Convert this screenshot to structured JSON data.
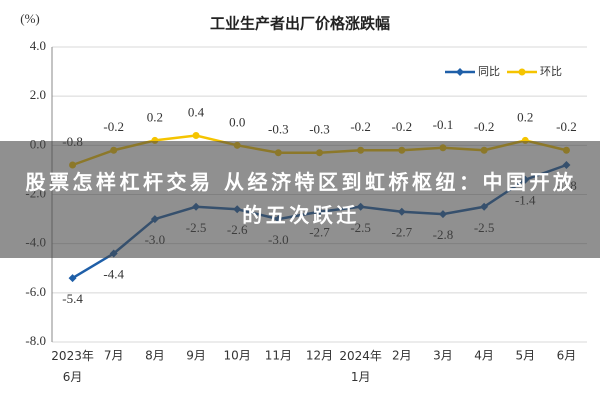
{
  "chart_data": {
    "type": "line",
    "title": "工业生产者出厂价格涨跌幅",
    "y_label": "(%)",
    "categories": [
      "2023年6月",
      "7月",
      "8月",
      "9月",
      "10月",
      "11月",
      "12月",
      "2024年1月",
      "2月",
      "3月",
      "4月",
      "5月",
      "6月"
    ],
    "series": [
      {
        "name": "同比",
        "color": "#1f5fa8",
        "marker": "diamond",
        "label_position": "below",
        "values": [
          -5.4,
          -4.4,
          -3.0,
          -2.5,
          -2.6,
          -3.0,
          -2.7,
          -2.5,
          -2.7,
          -2.8,
          -2.5,
          -1.4,
          -0.8
        ],
        "value_labels": [
          "-5.4",
          "-4.4",
          "-3.0",
          "-2.5",
          "-2.6",
          "-3.0",
          "-2.7",
          "-2.5",
          "-2.7",
          "-2.8",
          "-2.5",
          "-1.4",
          "-0.8"
        ]
      },
      {
        "name": "环比",
        "color": "#f5c400",
        "marker": "circle",
        "label_position": "above",
        "values": [
          -0.8,
          -0.2,
          0.2,
          0.4,
          0.0,
          -0.3,
          -0.3,
          -0.2,
          -0.2,
          -0.1,
          -0.2,
          0.2,
          -0.2
        ],
        "value_labels": [
          "-0.8",
          "-0.2",
          "0.2",
          "0.4",
          "0.0",
          "-0.3",
          "-0.3",
          "-0.2",
          "-0.2",
          "-0.1",
          "-0.2",
          "0.2",
          "-0.2"
        ]
      }
    ],
    "ylim": [
      -8,
      4
    ],
    "yticks": [
      {
        "value": -8,
        "label": "-8.0"
      },
      {
        "value": -6,
        "label": "-6.0"
      },
      {
        "value": -4,
        "label": "-4.0"
      },
      {
        "value": -2,
        "label": "-2.0"
      },
      {
        "value": 0,
        "label": "0.0"
      },
      {
        "value": 2,
        "label": "2.0"
      },
      {
        "value": 4,
        "label": "4.0"
      }
    ],
    "grid": true,
    "legend": "top-right"
  },
  "banner": {
    "text": "股票怎样杠杆交易 从经济特区到虹桥枢纽：中国开放的五次跃迁"
  }
}
